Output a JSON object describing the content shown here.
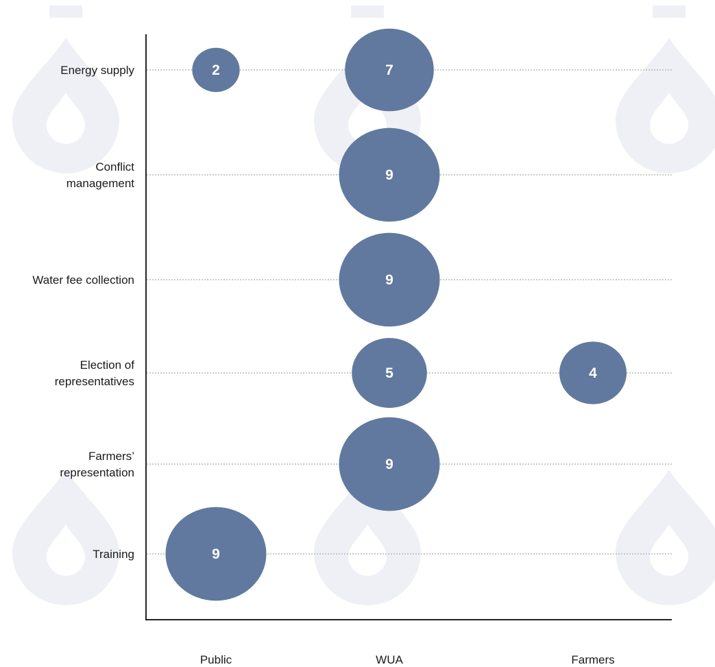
{
  "chart_data": {
    "type": "bubble",
    "title": "",
    "xlabel": "",
    "ylabel": "",
    "grid": "horizontal dotted lines",
    "categories_x": [
      "Public",
      "WUA",
      "Farmers"
    ],
    "categories_y": [
      [
        "Energy supply"
      ],
      [
        "Conflict",
        "management"
      ],
      [
        "Water fee collection"
      ],
      [
        "Election of",
        "representatives"
      ],
      [
        "Farmers’",
        "representation"
      ],
      [
        "Training"
      ]
    ],
    "points": [
      {
        "x": "Public",
        "y": "Energy supply",
        "value": 2
      },
      {
        "x": "WUA",
        "y": "Energy supply",
        "value": 7
      },
      {
        "x": "WUA",
        "y": "Conflict management",
        "value": 9
      },
      {
        "x": "WUA",
        "y": "Water fee collection",
        "value": 9
      },
      {
        "x": "WUA",
        "y": "Election of representatives",
        "value": 5
      },
      {
        "x": "Farmers",
        "y": "Election of representatives",
        "value": 4
      },
      {
        "x": "WUA",
        "y": "Farmers’ representation",
        "value": 9
      },
      {
        "x": "Public",
        "y": "Training",
        "value": 9
      }
    ]
  },
  "colors": {
    "bubble": "#61799e",
    "bubble_text": "#ffffff",
    "axis": "#222222",
    "gridline": "#b8b8b8",
    "watermark": "#eef0f6"
  },
  "decoration": {
    "watermark_icon": "water-drop-icon"
  }
}
